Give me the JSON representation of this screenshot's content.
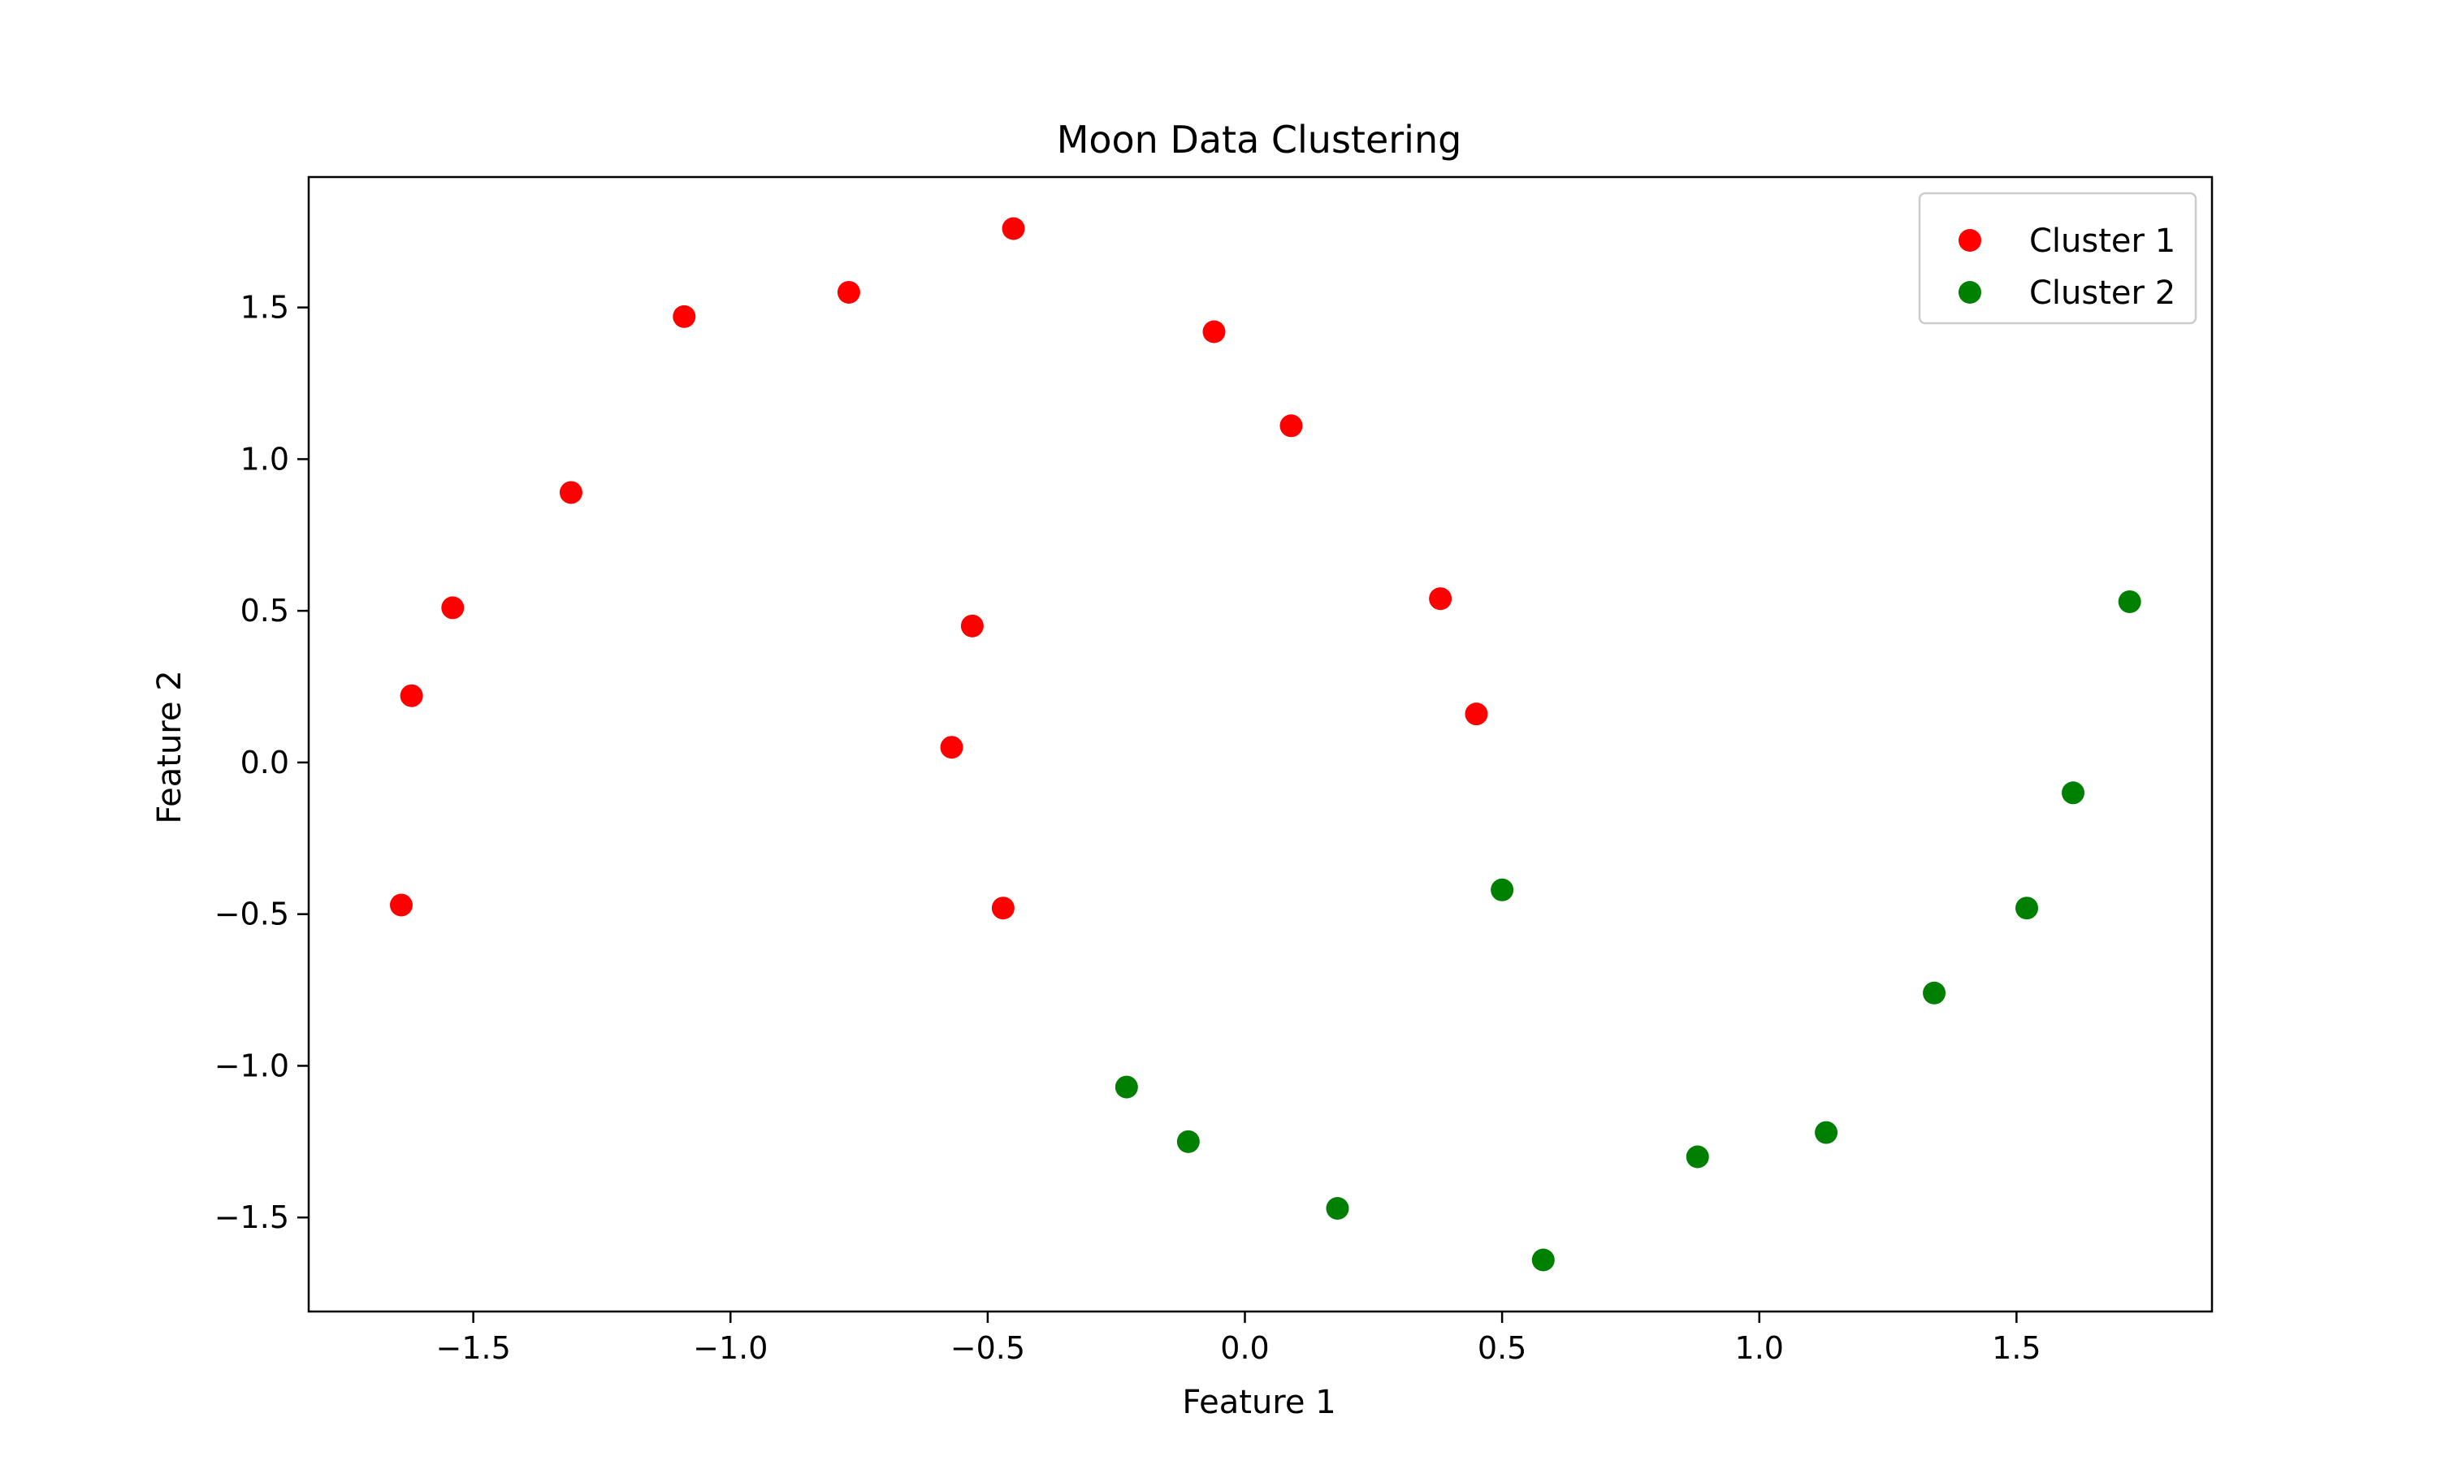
{
  "chart_data": {
    "type": "scatter",
    "title": "Moon Data Clustering",
    "xlabel": "Feature 1",
    "ylabel": "Feature 2",
    "xlim": [
      -1.82,
      1.88
    ],
    "ylim": [
      -1.81,
      1.93
    ],
    "xticks": [
      -1.5,
      -1.0,
      -0.5,
      0.0,
      0.5,
      1.0,
      1.5
    ],
    "xtick_labels": [
      "−1.5",
      "−1.0",
      "−0.5",
      "0.0",
      "0.5",
      "1.0",
      "1.5"
    ],
    "yticks": [
      -1.5,
      -1.0,
      -0.5,
      0.0,
      0.5,
      1.0,
      1.5
    ],
    "ytick_labels": [
      "−1.5",
      "−1.0",
      "−0.5",
      "0.0",
      "0.5",
      "1.0",
      "1.5"
    ],
    "grid": false,
    "legend_position": "top-right",
    "series": [
      {
        "name": "Cluster 1",
        "color": "#ff0000",
        "points": [
          [
            -1.64,
            -0.47
          ],
          [
            -1.62,
            0.22
          ],
          [
            -1.54,
            0.51
          ],
          [
            -1.31,
            0.89
          ],
          [
            -1.09,
            1.47
          ],
          [
            -0.77,
            1.55
          ],
          [
            -0.45,
            1.76
          ],
          [
            -0.06,
            1.42
          ],
          [
            0.09,
            1.11
          ],
          [
            0.38,
            0.54
          ],
          [
            0.45,
            0.16
          ],
          [
            -0.53,
            0.45
          ],
          [
            -0.57,
            0.05
          ],
          [
            -0.47,
            -0.48
          ]
        ]
      },
      {
        "name": "Cluster 2",
        "color": "#008000",
        "points": [
          [
            -0.23,
            -1.07
          ],
          [
            -0.11,
            -1.25
          ],
          [
            0.18,
            -1.47
          ],
          [
            0.5,
            -0.42
          ],
          [
            0.58,
            -1.64
          ],
          [
            0.88,
            -1.3
          ],
          [
            1.13,
            -1.22
          ],
          [
            1.34,
            -0.76
          ],
          [
            1.52,
            -0.48
          ],
          [
            1.61,
            -0.1
          ],
          [
            1.72,
            0.53
          ]
        ]
      }
    ]
  }
}
